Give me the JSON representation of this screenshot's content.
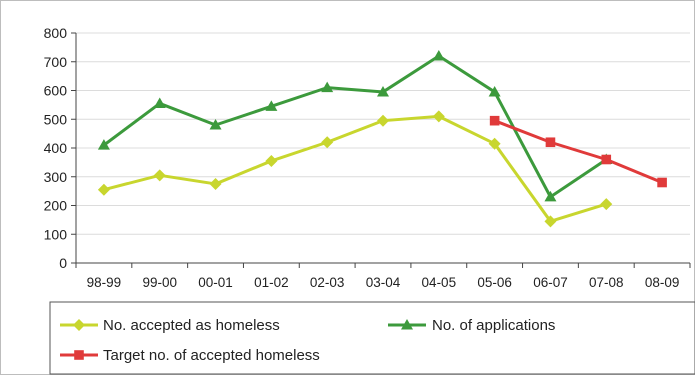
{
  "chart_data": {
    "type": "line",
    "title": "",
    "xlabel": "",
    "ylabel": "",
    "categories": [
      "98-99",
      "99-00",
      "00-01",
      "01-02",
      "02-03",
      "03-04",
      "04-05",
      "05-06",
      "06-07",
      "07-08",
      "08-09"
    ],
    "ylim": [
      0,
      800
    ],
    "yticks": [
      0,
      100,
      200,
      300,
      400,
      500,
      600,
      700,
      800
    ],
    "grid": true,
    "legend_placement": "bottom",
    "series": [
      {
        "name": "No. accepted as homeless",
        "color": "#c8d62e",
        "marker": "diamond",
        "values": [
          255,
          305,
          275,
          355,
          420,
          495,
          510,
          415,
          145,
          205,
          null
        ]
      },
      {
        "name": "No. of applications",
        "color": "#3c9a3c",
        "marker": "triangle",
        "values": [
          410,
          555,
          480,
          545,
          610,
          595,
          720,
          595,
          230,
          360,
          null
        ]
      },
      {
        "name": "Target no. of accepted homeless",
        "color": "#e03a3a",
        "marker": "square",
        "values": [
          null,
          null,
          null,
          null,
          null,
          null,
          null,
          495,
          420,
          360,
          280
        ]
      }
    ]
  }
}
